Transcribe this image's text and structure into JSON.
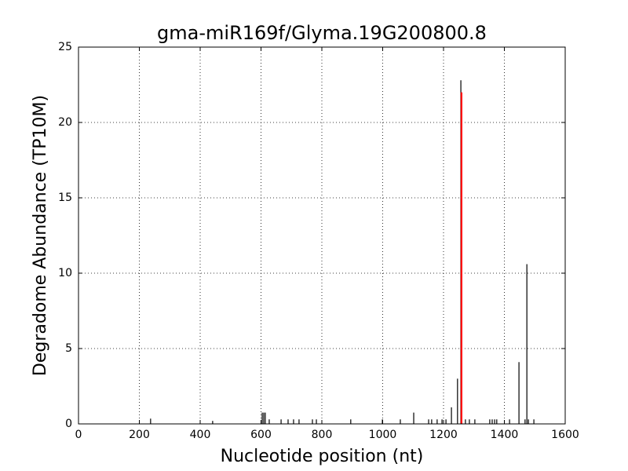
{
  "chart_data": {
    "type": "stem",
    "title": "gma-miR169f/Glyma.19G200800.8",
    "xlabel": "Nucleotide position (nt)",
    "ylabel": "Degradome Abundance (TP10M)",
    "xlim": [
      0,
      1600
    ],
    "xticks": [
      0,
      200,
      400,
      600,
      800,
      1000,
      1200,
      1400,
      1600
    ],
    "ylim": [
      0,
      25
    ],
    "yticks": [
      0,
      5,
      10,
      15,
      20,
      25
    ],
    "grid": true,
    "series": [
      {
        "color": "#000000",
        "x": [
          237,
          441,
          604,
          609,
          614,
          627,
          666,
          689,
          707,
          725,
          769,
          782,
          895,
          999,
          1058,
          1102,
          1151,
          1161,
          1179,
          1195,
          1208,
          1226,
          1246,
          1257,
          1272,
          1285,
          1303,
          1352,
          1360,
          1368,
          1375,
          1417,
          1448,
          1468,
          1474,
          1479,
          1497
        ],
        "values": [
          0.35,
          0.2,
          0.75,
          0.75,
          0.75,
          0.3,
          0.3,
          0.3,
          0.3,
          0.3,
          0.3,
          0.3,
          0.3,
          0.3,
          0.3,
          0.75,
          0.3,
          0.3,
          0.3,
          0.3,
          0.3,
          1.1,
          3.0,
          22.8,
          0.3,
          0.3,
          0.3,
          0.3,
          0.3,
          0.3,
          0.3,
          0.3,
          4.1,
          0.3,
          10.6,
          0.3,
          0.3
        ]
      },
      {
        "color": "#ff0000",
        "x": [
          1259
        ],
        "values": [
          22
        ]
      }
    ]
  }
}
